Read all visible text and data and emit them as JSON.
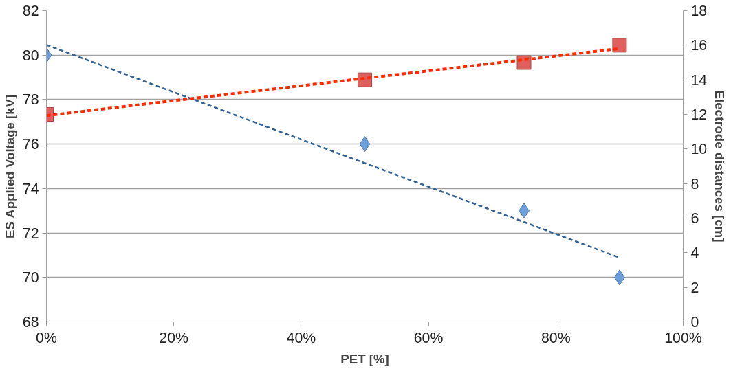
{
  "chart_data": {
    "type": "scatter",
    "xlabel": "PET [%]",
    "ylabel": "ES Applied Voltage [kV]",
    "y2label": "Electrode distances [cm]",
    "x": [
      0,
      50,
      75,
      90
    ],
    "xlim": [
      0,
      100
    ],
    "xticks": [
      {
        "value": 0,
        "label": "0%"
      },
      {
        "value": 20,
        "label": "20%"
      },
      {
        "value": 40,
        "label": "40%"
      },
      {
        "value": 60,
        "label": "60%"
      },
      {
        "value": 80,
        "label": "80%"
      },
      {
        "value": 100,
        "label": "100%"
      }
    ],
    "ylim": [
      68,
      82
    ],
    "yticks": [
      68,
      70,
      72,
      74,
      76,
      78,
      80,
      82
    ],
    "y2lim": [
      0,
      18
    ],
    "y2ticks": [
      0,
      2,
      4,
      6,
      8,
      10,
      12,
      14,
      16,
      18
    ],
    "grid": "y",
    "series": [
      {
        "type": "line",
        "values": [
          80.46,
          75.14,
          72.49,
          70.89
        ],
        "color": "#2e5f95",
        "line_style": "dashed",
        "marker": "none"
      },
      {
        "type": "line",
        "values": [
          11.93,
          14.09,
          15.16,
          15.81
        ],
        "color": "#ff2a00",
        "line_style": "dashed",
        "marker": "none",
        "axis": "y2"
      },
      {
        "values": [
          80,
          76,
          73,
          70
        ],
        "color": "#6a9fdc",
        "marker": "diamond"
      },
      {
        "values": [
          12,
          14,
          15,
          16
        ],
        "color": "#e0605e",
        "marker": "square",
        "axis": "y2"
      }
    ]
  }
}
